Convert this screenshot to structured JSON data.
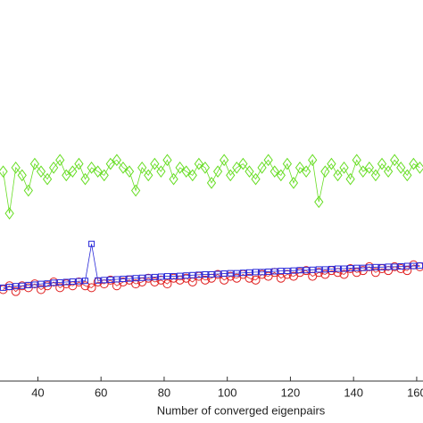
{
  "chart_data": {
    "type": "line",
    "xlabel": "Number of converged eigenpairs",
    "x": [
      29,
      31,
      33,
      35,
      37,
      39,
      41,
      43,
      45,
      47,
      49,
      51,
      53,
      55,
      57,
      59,
      61,
      63,
      65,
      67,
      69,
      71,
      73,
      75,
      77,
      79,
      81,
      83,
      85,
      87,
      89,
      91,
      93,
      95,
      97,
      99,
      101,
      103,
      105,
      107,
      109,
      111,
      113,
      115,
      117,
      119,
      121,
      123,
      125,
      127,
      129,
      131,
      133,
      135,
      137,
      139,
      141,
      143,
      145,
      147,
      149,
      151,
      153,
      155,
      157,
      159,
      161
    ],
    "series": [
      {
        "color": "#66dd22",
        "marker": "diamond",
        "values": [
          55,
          44,
          56,
          54,
          50,
          57,
          55,
          53,
          56,
          58,
          54,
          55,
          57,
          53,
          56,
          55,
          54,
          57,
          58,
          56,
          55,
          50,
          56,
          54,
          57,
          55,
          58,
          53,
          56,
          55,
          54,
          57,
          56,
          52,
          55,
          58,
          54,
          56,
          57,
          55,
          53,
          56,
          58,
          55,
          54,
          57,
          52,
          56,
          55,
          58,
          47,
          55,
          57,
          54,
          56,
          53,
          58,
          55,
          56,
          54,
          57,
          55,
          58,
          56,
          54,
          57,
          56
        ]
      },
      {
        "color": "#e02020",
        "marker": "circle",
        "values": [
          24,
          25,
          23.5,
          25,
          24.5,
          25.5,
          24,
          25,
          26,
          24.5,
          25.5,
          25,
          26,
          25,
          24.5,
          26,
          25.5,
          26.5,
          25,
          26,
          26.5,
          25.5,
          26,
          27,
          26,
          26.5,
          25.5,
          27,
          26.5,
          27,
          26,
          27.5,
          26.5,
          27,
          28,
          26.5,
          27.5,
          27,
          28,
          27,
          26.5,
          28,
          27.5,
          28.5,
          27,
          28,
          27.5,
          28.5,
          29,
          27.5,
          28.5,
          28,
          29,
          28.5,
          28,
          29.5,
          28.5,
          29,
          30,
          28.5,
          29.5,
          29,
          30,
          29.5,
          29,
          30.5,
          30
        ]
      },
      {
        "color": "#2828d8",
        "marker": "square",
        "values": [
          24.5,
          24.7,
          24.9,
          25,
          25.2,
          25.3,
          25.5,
          25.6,
          25.8,
          25.9,
          26,
          26.1,
          26.2,
          26.3,
          36,
          26.4,
          26.5,
          26.6,
          26.7,
          26.8,
          26.9,
          27,
          27.1,
          27.2,
          27.3,
          27.4,
          27.5,
          27.5,
          27.6,
          27.7,
          27.8,
          27.9,
          28,
          28,
          28.1,
          28.2,
          28.3,
          28.3,
          28.4,
          28.5,
          28.6,
          28.6,
          28.7,
          28.8,
          28.9,
          28.9,
          29,
          29.1,
          29.1,
          29.2,
          29.3,
          29.3,
          29.4,
          29.5,
          29.5,
          29.6,
          29.7,
          29.7,
          29.8,
          29.9,
          29.9,
          30,
          30,
          30.1,
          30.2,
          30.2,
          30.3
        ]
      }
    ],
    "xlim": [
      28,
      162
    ],
    "xticks": [
      40,
      60,
      80,
      100,
      120,
      140,
      160
    ],
    "ylim": [
      0,
      100
    ]
  }
}
